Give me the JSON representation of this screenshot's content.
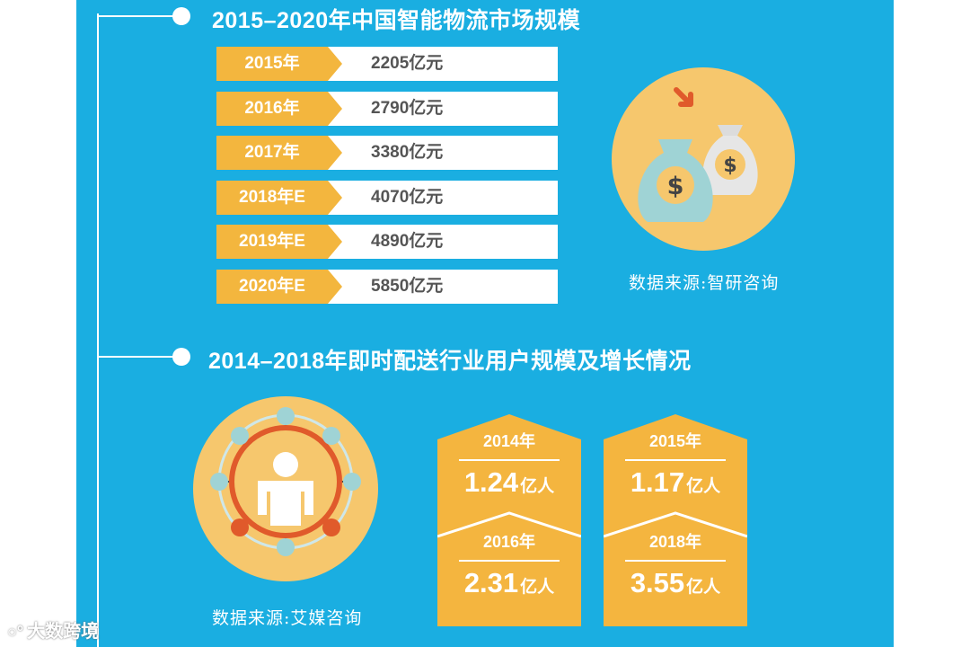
{
  "sections": [
    {
      "title": "2015–2020年中国智能物流市场规模",
      "source": "数据来源:智研咨询"
    },
    {
      "title": "2014–2018年即时配送行业用户规模及增长情况",
      "source": "数据来源:艾媒咨询"
    }
  ],
  "chart_data": [
    {
      "type": "table",
      "title": "2015–2020年中国智能物流市场规模",
      "categories": [
        "2015年",
        "2016年",
        "2017年",
        "2018年E",
        "2019年E",
        "2020年E"
      ],
      "values": [
        2205,
        2790,
        3380,
        4070,
        4890,
        5850
      ],
      "value_labels": [
        "2205亿元",
        "2790亿元",
        "3380亿元",
        "4070亿元",
        "4890亿元",
        "5850亿元"
      ],
      "unit": "亿元",
      "source": "数据来源:智研咨询"
    },
    {
      "type": "table",
      "title": "2014–2018年即时配送行业用户规模及增长情况",
      "categories": [
        "2014年",
        "2015年",
        "2016年",
        "2018年"
      ],
      "values": [
        1.24,
        1.17,
        2.31,
        3.55
      ],
      "value_texts": [
        "1.24",
        "1.17",
        "2.31",
        "3.55"
      ],
      "unit": "亿人",
      "source": "数据来源:艾媒咨询"
    }
  ],
  "colors": {
    "background": "#1aaee1",
    "accent": "#f3b63e",
    "circle": "#f6c76d",
    "text_dark": "#555555"
  },
  "icons": {
    "money": "money-bags-icon",
    "users": "user-network-icon"
  },
  "watermark": {
    "text": "大数跨境",
    "icon": "logo-icon"
  }
}
